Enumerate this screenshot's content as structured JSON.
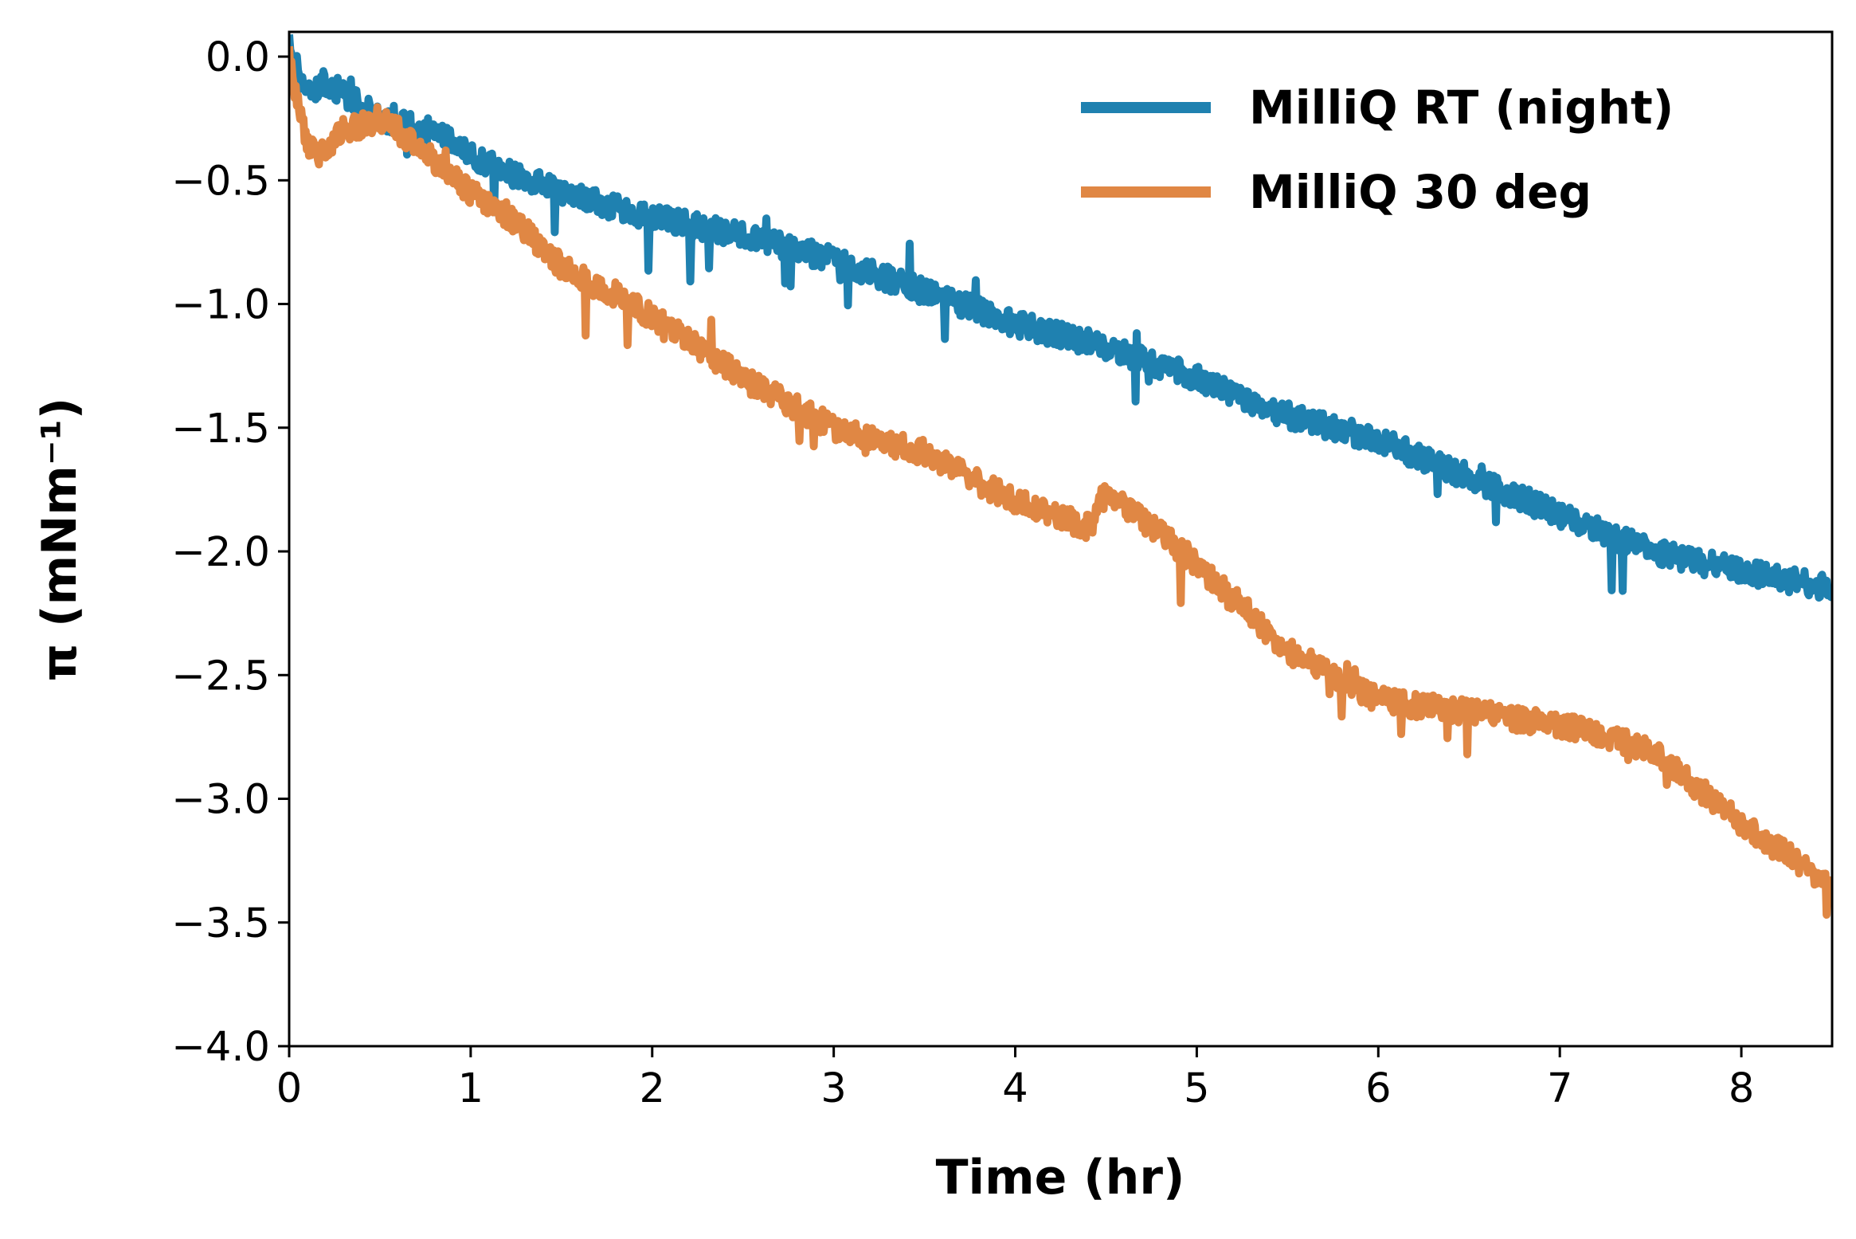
{
  "chart_data": {
    "type": "line",
    "xlabel": "Time (hr)",
    "ylabel": "π (mNm⁻¹)",
    "xlim": [
      0,
      8.5
    ],
    "ylim": [
      -4.0,
      0.1
    ],
    "x_ticks": [
      "0",
      "1",
      "2",
      "3",
      "4",
      "5",
      "6",
      "7",
      "8"
    ],
    "y_ticks": [
      "0.0",
      "−0.5",
      "−1.0",
      "−1.5",
      "−2.0",
      "−2.5",
      "−3.0",
      "−3.5",
      "−4.0"
    ],
    "grid": false,
    "legend_position": "top-right",
    "series": [
      {
        "name": "MilliQ RT (night)",
        "color": "#1f81b0",
        "x": [
          0,
          0.05,
          0.1,
          0.2,
          0.3,
          0.5,
          0.8,
          1.0,
          1.5,
          2.0,
          2.5,
          3.0,
          3.5,
          4.0,
          4.5,
          5.0,
          5.5,
          6.0,
          6.5,
          7.0,
          7.5,
          8.0,
          8.5
        ],
        "y": [
          0.05,
          -0.05,
          -0.15,
          -0.1,
          -0.15,
          -0.25,
          -0.3,
          -0.4,
          -0.55,
          -0.65,
          -0.72,
          -0.82,
          -0.95,
          -1.08,
          -1.17,
          -1.3,
          -1.45,
          -1.55,
          -1.7,
          -1.85,
          -2.0,
          -2.08,
          -2.15
        ]
      },
      {
        "name": "MilliQ 30 deg",
        "color": "#e08744",
        "x": [
          0,
          0.05,
          0.1,
          0.15,
          0.3,
          0.5,
          0.7,
          1.0,
          1.3,
          1.5,
          2.0,
          2.5,
          3.0,
          3.5,
          4.0,
          4.4,
          4.5,
          5.0,
          5.5,
          6.0,
          6.5,
          7.0,
          7.5,
          8.0,
          8.5
        ],
        "y": [
          0,
          -0.2,
          -0.35,
          -0.4,
          -0.3,
          -0.25,
          -0.35,
          -0.55,
          -0.7,
          -0.85,
          -1.05,
          -1.3,
          -1.5,
          -1.6,
          -1.8,
          -1.9,
          -1.75,
          -2.05,
          -2.4,
          -2.6,
          -2.65,
          -2.7,
          -2.8,
          -3.1,
          -3.35
        ]
      }
    ]
  }
}
